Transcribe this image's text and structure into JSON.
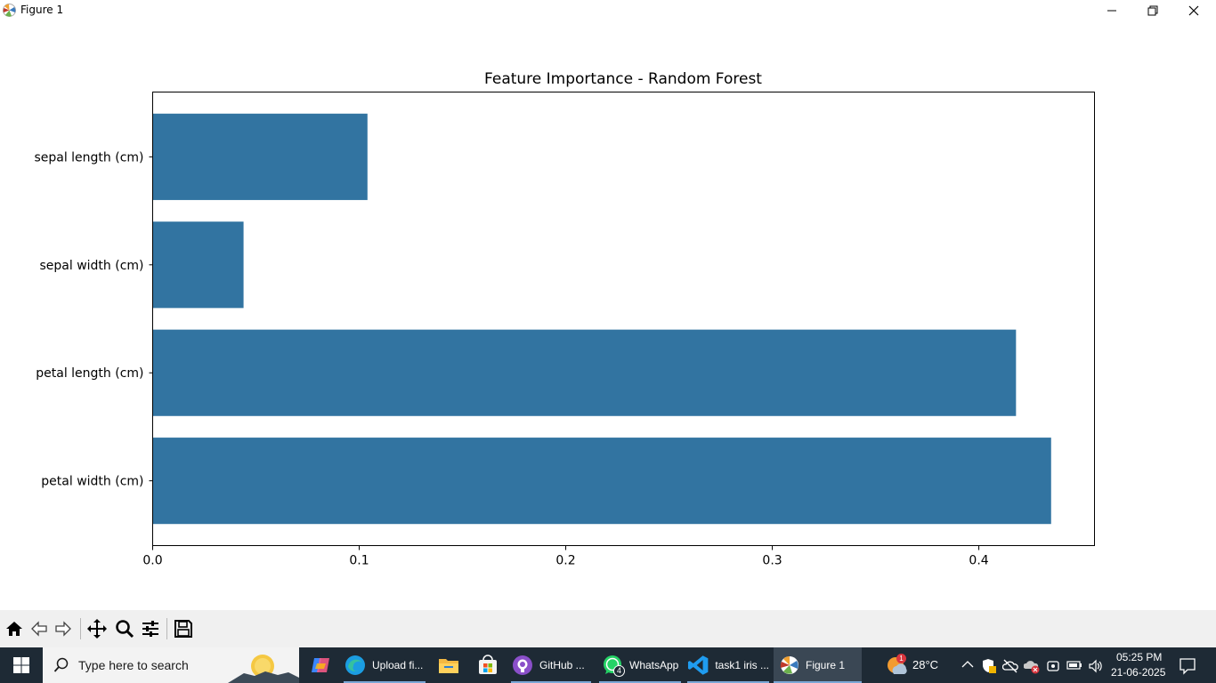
{
  "window": {
    "title": "Figure 1",
    "icon": "matplotlib-icon",
    "controls": [
      "minimize-icon",
      "restore-icon",
      "close-icon"
    ]
  },
  "chart_data": {
    "type": "bar",
    "orientation": "horizontal",
    "title": "Feature Importance - Random Forest",
    "xlabel": "",
    "ylabel": "",
    "categories": [
      "sepal length (cm)",
      "sepal width (cm)",
      "petal length (cm)",
      "petal width (cm)"
    ],
    "values": [
      0.104,
      0.044,
      0.418,
      0.435
    ],
    "xlim": [
      0,
      0.456
    ],
    "xticks": [
      0.0,
      0.1,
      0.2,
      0.3,
      0.4
    ],
    "xtick_labels": [
      "0.0",
      "0.1",
      "0.2",
      "0.3",
      "0.4"
    ],
    "bar_color": "#3274a1",
    "grid": false,
    "legend": "none"
  },
  "mpl_toolbar": {
    "buttons": [
      "home-icon",
      "back-icon",
      "forward-icon",
      "pan-icon",
      "zoom-icon",
      "configure-subplots-icon",
      "save-icon"
    ]
  },
  "taskbar": {
    "search_placeholder": "Type here to search",
    "apps": [
      {
        "label": "",
        "icon": "copilot-icon"
      },
      {
        "label": "Upload fi...",
        "icon": "edge-icon"
      },
      {
        "label": "",
        "icon": "file-explorer-icon"
      },
      {
        "label": "",
        "icon": "ms-store-icon"
      },
      {
        "label": "GitHub ...",
        "icon": "github-icon"
      },
      {
        "label": "WhatsApp",
        "icon": "whatsapp-icon",
        "badge": "4"
      },
      {
        "label": "task1 iris ...",
        "icon": "vscode-icon"
      },
      {
        "label": "Figure 1",
        "icon": "matplotlib-icon"
      }
    ],
    "weather_badge": "1",
    "temperature": "28°C",
    "time": "05:25 PM",
    "date": "21-06-2025",
    "colors": {
      "taskbar_bg": "#1e2a35",
      "accent": "#7aa7d6"
    }
  }
}
